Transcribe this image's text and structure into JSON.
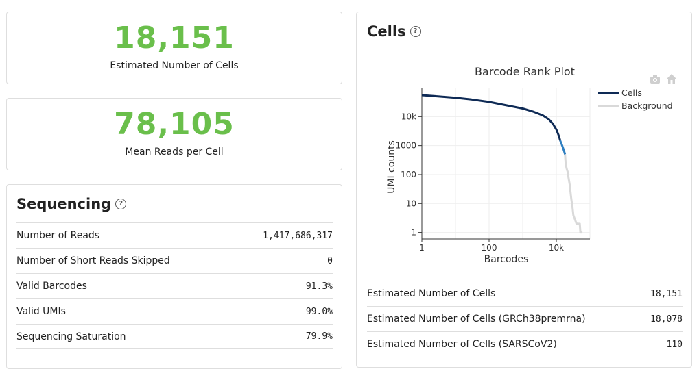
{
  "summary": {
    "cells": {
      "value": "18,151",
      "label": "Estimated Number of Cells"
    },
    "reads": {
      "value": "78,105",
      "label": "Mean Reads per Cell"
    }
  },
  "sequencing": {
    "title": "Sequencing",
    "rows": [
      {
        "label": "Number of Reads",
        "value": "1,417,686,317"
      },
      {
        "label": "Number of Short Reads Skipped",
        "value": "0"
      },
      {
        "label": "Valid Barcodes",
        "value": "91.3%"
      },
      {
        "label": "Valid UMIs",
        "value": "99.0%"
      },
      {
        "label": "Sequencing Saturation",
        "value": "79.9%"
      }
    ]
  },
  "cells_panel": {
    "title": "Cells",
    "rows": [
      {
        "label": "Estimated Number of Cells",
        "value": "18,151"
      },
      {
        "label": "Estimated Number of Cells (GRCh38premrna)",
        "value": "18,078"
      },
      {
        "label": "Estimated Number of Cells (SARSCoV2)",
        "value": "110"
      }
    ]
  },
  "icons": {
    "camera": "camera-icon",
    "home": "home-icon",
    "help": "help-icon"
  },
  "colors": {
    "accent_green": "#6abf4b",
    "cells": "#0e2a55",
    "transition": "#2f7fc1",
    "background": "#d9d9d9"
  },
  "chart_data": {
    "type": "line",
    "title": "Barcode Rank Plot",
    "xlabel": "Barcodes",
    "ylabel": "UMI counts",
    "xscale": "log",
    "yscale": "log",
    "xlim": [
      1,
      100000
    ],
    "ylim": [
      0.6,
      100000
    ],
    "x_ticks": [
      1,
      100,
      10000
    ],
    "x_tick_labels": [
      "1",
      "100",
      "10k"
    ],
    "y_ticks": [
      1,
      10,
      100,
      1000,
      10000
    ],
    "y_tick_labels": [
      "1",
      "10",
      "100",
      "1000",
      "10k"
    ],
    "grid": true,
    "legend_position": "top-right",
    "series": [
      {
        "name": "Cells",
        "color": "#0e2a55",
        "x": [
          1,
          3,
          10,
          30,
          100,
          300,
          1000,
          2000,
          4000,
          6000,
          8000,
          10000,
          12000,
          13000
        ],
        "y": [
          55000,
          50000,
          45000,
          39000,
          32000,
          25000,
          19000,
          15000,
          11000,
          8000,
          5500,
          3600,
          2100,
          1500
        ]
      },
      {
        "name": "",
        "color": "#2f7fc1",
        "x": [
          13000,
          14500,
          16000,
          17000,
          18151
        ],
        "y": [
          1500,
          1100,
          800,
          650,
          500
        ]
      },
      {
        "name": "Background",
        "color": "#d9d9d9",
        "x": [
          18151,
          19000,
          20000,
          21000,
          22000,
          22500,
          23000,
          24000,
          25000,
          26000,
          27000,
          28000,
          30000,
          32000,
          40000,
          45000,
          50000,
          52000,
          55000,
          60000
        ],
        "y": [
          500,
          230,
          170,
          140,
          120,
          100,
          80,
          60,
          45,
          30,
          20,
          14,
          8,
          4,
          2,
          2,
          2,
          1,
          1,
          1
        ]
      }
    ]
  }
}
